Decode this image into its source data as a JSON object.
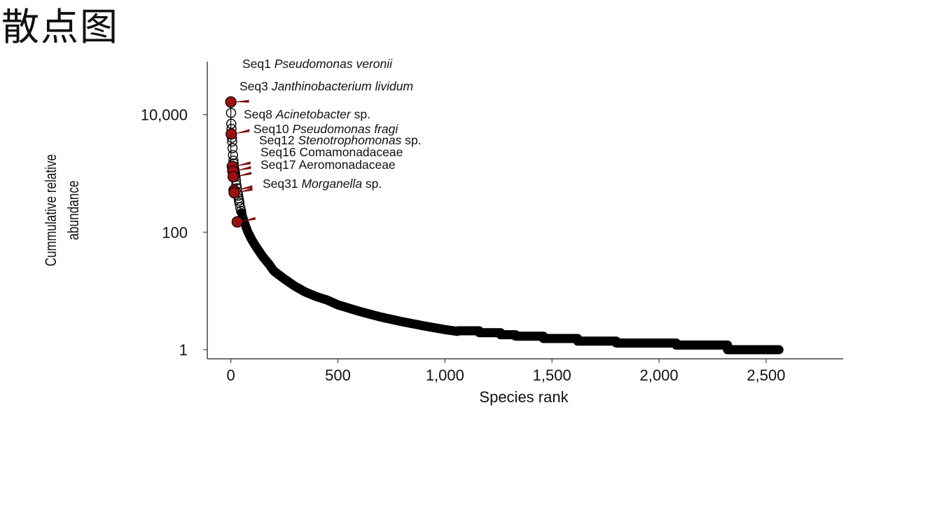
{
  "slide": {
    "title": "散点图"
  },
  "chart_data": {
    "type": "scatter",
    "xlabel": "Species rank",
    "ylabel_lines": [
      "Cummulative relative",
      "abundance"
    ],
    "x_ticks": [
      0,
      500,
      1000,
      1500,
      2000,
      2500
    ],
    "x_tick_labels": [
      "0",
      "500",
      "1,000",
      "1,500",
      "2,000",
      "2,500"
    ],
    "y_ticks": [
      1,
      100,
      10000
    ],
    "y_tick_labels": [
      "1",
      "100",
      "10,000"
    ],
    "y_scale": "log",
    "xlim": [
      -110,
      2860
    ],
    "ylim": [
      0.7,
      80000
    ],
    "grid": false,
    "legend": "none",
    "colors": {
      "highlight_fill": "#9b1010",
      "pointer": "#7a0f0f",
      "point_stroke": "#000000",
      "axis": "#444444"
    },
    "rank_abundance": [
      [
        0,
        16500
      ],
      [
        2,
        7000
      ],
      [
        4,
        4700
      ],
      [
        6,
        3500
      ],
      [
        8,
        2700
      ],
      [
        10,
        2050
      ],
      [
        12,
        1650
      ],
      [
        14,
        1320
      ],
      [
        16,
        1200
      ],
      [
        18,
        1100
      ],
      [
        20,
        970
      ],
      [
        22,
        880
      ],
      [
        24,
        760
      ],
      [
        26,
        640
      ],
      [
        28,
        560
      ],
      [
        30,
        520
      ],
      [
        32,
        470
      ],
      [
        34,
        420
      ],
      [
        36,
        380
      ],
      [
        38,
        345
      ],
      [
        40,
        315
      ],
      [
        42,
        290
      ],
      [
        44,
        265
      ],
      [
        46,
        245
      ],
      [
        50,
        215
      ],
      [
        55,
        185
      ],
      [
        60,
        160
      ],
      [
        70,
        125
      ],
      [
        80,
        100
      ],
      [
        100,
        72
      ],
      [
        120,
        55
      ],
      [
        150,
        38
      ],
      [
        180,
        28
      ],
      [
        200,
        22
      ],
      [
        250,
        16
      ],
      [
        300,
        12
      ],
      [
        350,
        9.5
      ],
      [
        400,
        8
      ],
      [
        450,
        7
      ],
      [
        500,
        5.8
      ],
      [
        600,
        4.5
      ],
      [
        700,
        3.6
      ],
      [
        800,
        3.0
      ],
      [
        900,
        2.55
      ],
      [
        1000,
        2.2
      ],
      [
        1100,
        1.95
      ],
      [
        1200,
        1.75
      ],
      [
        1300,
        1.55
      ],
      [
        1400,
        1.45
      ],
      [
        1500,
        1.32
      ],
      [
        1600,
        1.22
      ],
      [
        1700,
        1.13
      ],
      [
        1800,
        1.06
      ],
      [
        2000,
        1.02
      ],
      [
        2100,
        1.0
      ],
      [
        2300,
        0.98
      ],
      [
        2560,
        0.98
      ]
    ],
    "steps": [
      {
        "x": [
          1060,
          1160
        ],
        "y": 2.1
      },
      {
        "x": [
          1160,
          1260
        ],
        "y": 1.95
      },
      {
        "x": [
          1260,
          1330
        ],
        "y": 1.8
      },
      {
        "x": [
          1330,
          1460
        ],
        "y": 1.7
      },
      {
        "x": [
          1460,
          1620
        ],
        "y": 1.55
      },
      {
        "x": [
          1620,
          1800
        ],
        "y": 1.4
      },
      {
        "x": [
          1800,
          2080
        ],
        "y": 1.3
      },
      {
        "x": [
          2080,
          2320
        ],
        "y": 1.2
      },
      {
        "x": [
          2320,
          2560
        ],
        "y": 1.0
      }
    ],
    "highlighted": [
      {
        "name": "Seq1",
        "taxon": "Pseudomonas veronii",
        "suffix": "",
        "rank": 0,
        "value": 16500
      },
      {
        "name": "Seq3",
        "taxon": "Janthinobacterium lividum",
        "suffix": "",
        "rank": 2,
        "value": 4700
      },
      {
        "name": "Seq8",
        "taxon": "Acinetobacter",
        "suffix": " sp.",
        "rank": 7,
        "value": 1320
      },
      {
        "name": "Seq10",
        "taxon": "Pseudomonas fragi",
        "suffix": "",
        "rank": 9,
        "value": 1100
      },
      {
        "name": "Seq12",
        "taxon": "Stenotrophomonas",
        "suffix": " sp.",
        "rank": 11,
        "value": 880
      },
      {
        "name": "Seq16",
        "taxon": "",
        "suffix": "Comamonadaceae",
        "rank": 15,
        "value": 520
      },
      {
        "name": "Seq17",
        "taxon": "",
        "suffix": "Aeromonadaceae",
        "rank": 16,
        "value": 470
      },
      {
        "name": "Seq31",
        "taxon": "Morganella",
        "suffix": " sp.",
        "rank": 30,
        "value": 150
      }
    ]
  }
}
